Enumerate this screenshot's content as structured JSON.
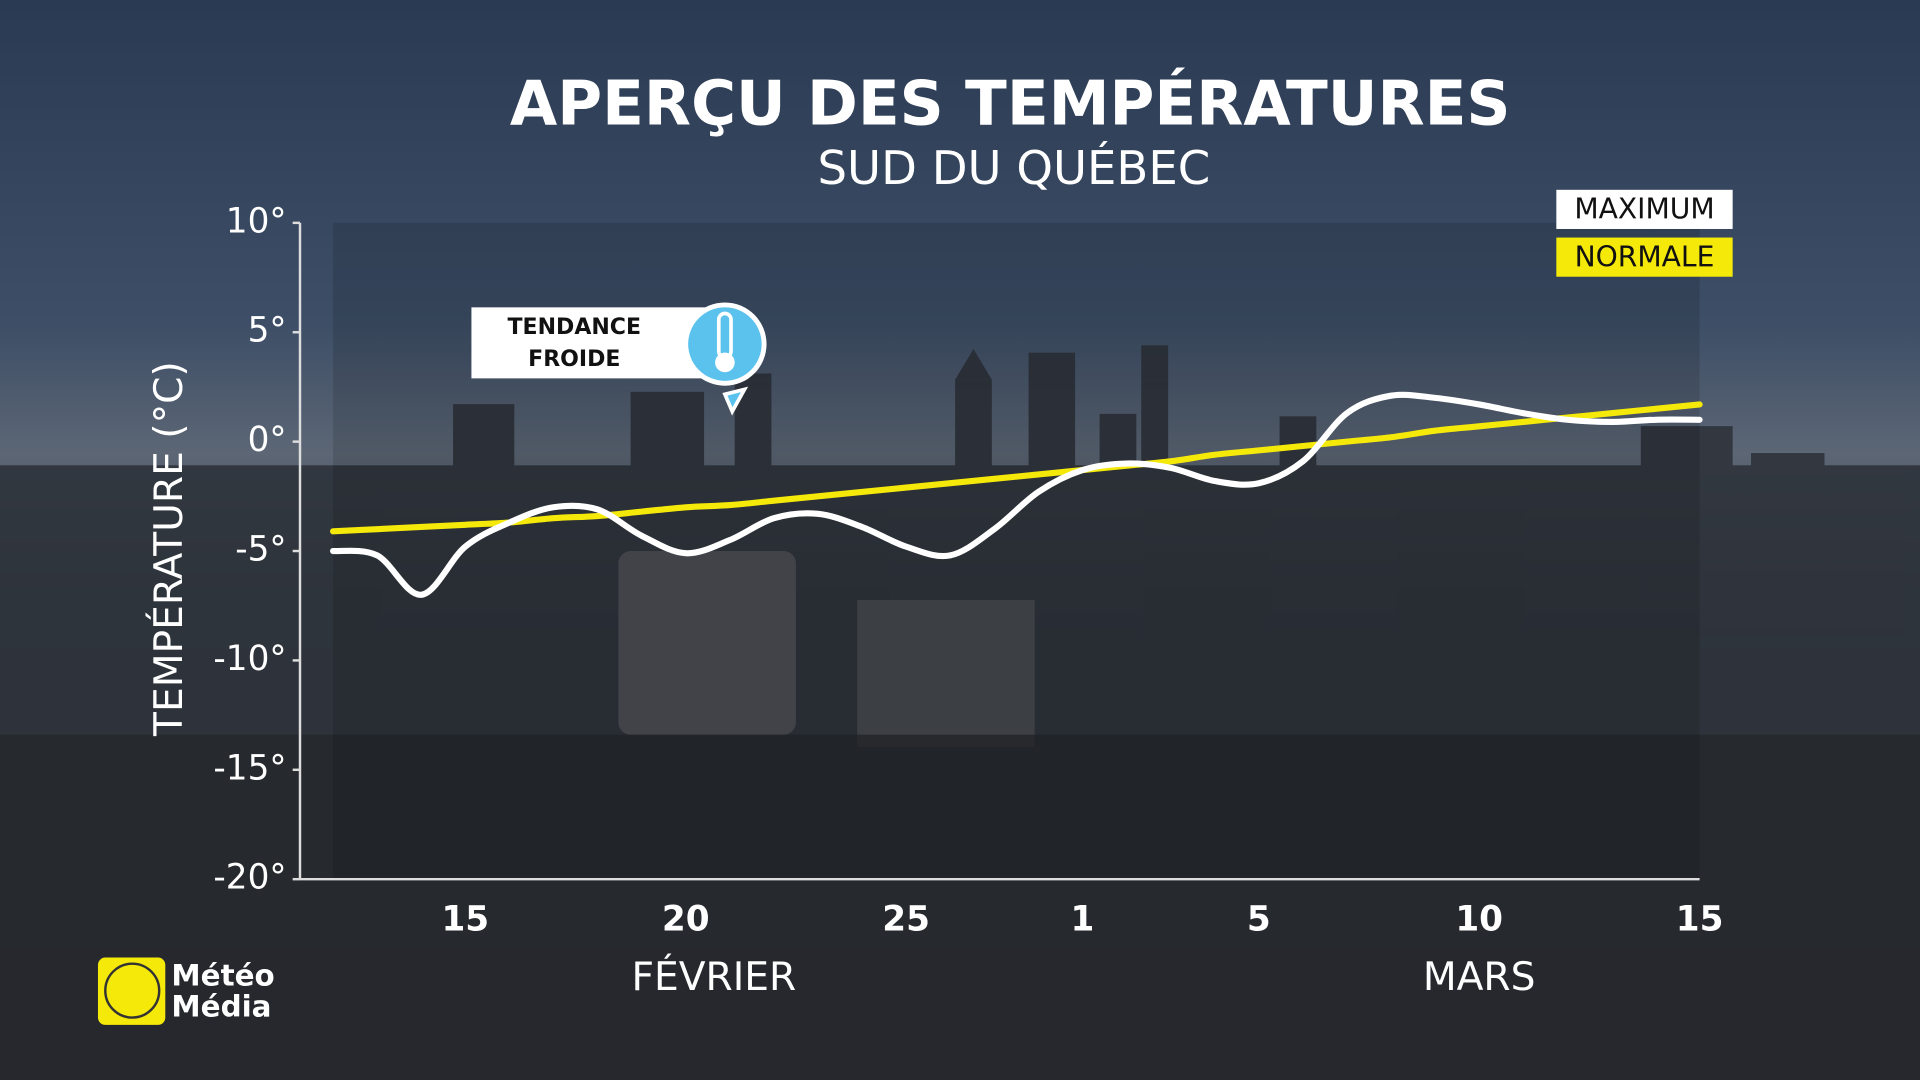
{
  "chart_data": {
    "type": "line",
    "title": "APERÇU DES TEMPÉRATURES",
    "subtitle": "SUD DU QUÉBEC",
    "y_label": "TEMPÉRATURE (°C)",
    "categories": [
      null,
      null,
      null,
      "15",
      null,
      null,
      null,
      null,
      "20",
      null,
      null,
      null,
      null,
      "25",
      null,
      null,
      null,
      "1",
      null,
      null,
      null,
      "5",
      null,
      null,
      null,
      null,
      "10",
      null,
      null,
      null,
      null,
      "15"
    ],
    "months": [
      "FÉVRIER",
      "MARS"
    ],
    "series": [
      {
        "name": "MAXIMUM",
        "color": "#ffffff",
        "values": [
          -5.0,
          -5.2,
          -7.0,
          -4.8,
          -3.7,
          -3.0,
          -3.1,
          -4.3,
          -5.1,
          -4.5,
          -3.5,
          -3.3,
          -3.9,
          -4.8,
          -5.2,
          -4.0,
          -2.3,
          -1.3,
          -1.0,
          -1.2,
          -1.8,
          -1.9,
          -0.9,
          1.3,
          2.1,
          2.0,
          1.7,
          1.3,
          1.0,
          0.9,
          1.0,
          1.0
        ]
      },
      {
        "name": "NORMALE",
        "color": "#f5e90a",
        "values": [
          -4.1,
          -4.0,
          -3.9,
          -3.8,
          -3.7,
          -3.5,
          -3.4,
          -3.2,
          -3.0,
          -2.9,
          -2.7,
          -2.5,
          -2.3,
          -2.1,
          -1.9,
          -1.7,
          -1.5,
          -1.3,
          -1.1,
          -0.9,
          -0.6,
          -0.4,
          -0.2,
          0.0,
          0.2,
          0.5,
          0.7,
          0.9,
          1.1,
          1.3,
          1.5,
          1.7
        ]
      }
    ],
    "ylim": [
      -20,
      10
    ],
    "yticks": [
      {
        "value": -20,
        "label": "-20°"
      },
      {
        "value": -15,
        "label": "-15°"
      },
      {
        "value": -10,
        "label": "-10°"
      },
      {
        "value": -5,
        "label": "-5°"
      },
      {
        "value": 0,
        "label": "0°"
      },
      {
        "value": 5,
        "label": "5°"
      },
      {
        "value": 10,
        "label": "10°"
      }
    ],
    "grid": false,
    "legend": "top-right",
    "annotation": [
      "TENDANCE",
      "FROIDE"
    ],
    "logo": [
      "Météo",
      "Média"
    ]
  }
}
